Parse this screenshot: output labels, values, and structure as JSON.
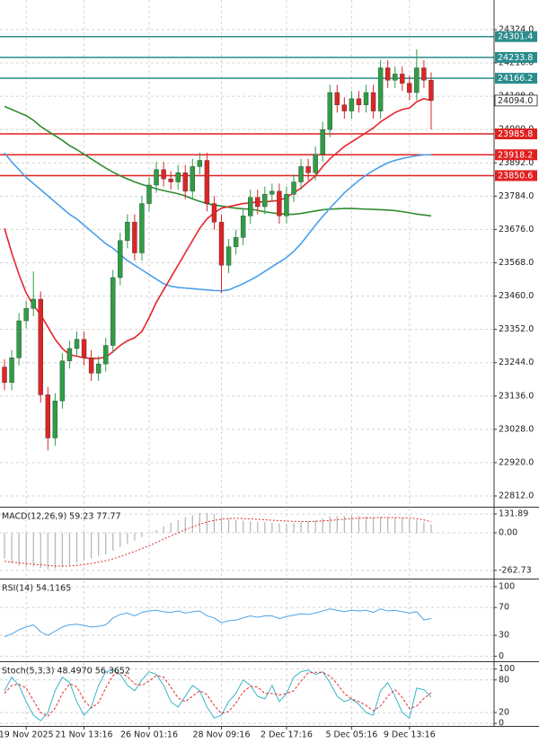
{
  "chart_data": [
    {
      "type": "candlestick",
      "grid": true,
      "up_color": "#2e9e45",
      "down_color": "#e02424",
      "categories": [
        null,
        null,
        null,
        "19 Nov 2025",
        null,
        null,
        null,
        null,
        null,
        null,
        null,
        "21 Nov 13:16",
        null,
        null,
        null,
        null,
        null,
        null,
        null,
        null,
        "26 Nov 01:16",
        null,
        null,
        null,
        null,
        null,
        null,
        null,
        null,
        null,
        "28 Nov 09:16",
        null,
        null,
        null,
        null,
        null,
        null,
        null,
        null,
        "2 Dec 17:16",
        null,
        null,
        null,
        null,
        null,
        null,
        null,
        null,
        "5 Dec 05:16",
        null,
        null,
        null,
        null,
        null,
        null,
        null,
        "9 Dec 13:16",
        null,
        null,
        null
      ],
      "open": [
        23230,
        23180,
        23260,
        23380,
        23420,
        23450,
        23140,
        23000,
        23120,
        23250,
        23290,
        23320,
        23260,
        23210,
        23240,
        23300,
        23520,
        23640,
        23700,
        23600,
        23760,
        23820,
        23870,
        23840,
        23830,
        23860,
        23800,
        23880,
        23900,
        23760,
        23700,
        23560,
        23620,
        23650,
        23720,
        23780,
        23750,
        23790,
        23800,
        23720,
        23790,
        23830,
        23880,
        23860,
        23920,
        24000,
        24120,
        24080,
        24060,
        24100,
        24080,
        24120,
        24060,
        24200,
        24160,
        24180,
        24150,
        24120,
        24200,
        24160
      ],
      "high": [
        23255,
        23285,
        23405,
        23445,
        23540,
        23475,
        23165,
        23145,
        23275,
        23315,
        23345,
        23345,
        23285,
        23265,
        23325,
        23545,
        23665,
        23725,
        23725,
        23785,
        23845,
        23895,
        23895,
        23865,
        23885,
        23885,
        23905,
        23925,
        23925,
        23785,
        23725,
        23645,
        23675,
        23745,
        23805,
        23805,
        23815,
        23825,
        23825,
        23815,
        23855,
        23905,
        23905,
        23945,
        24025,
        24145,
        24145,
        24105,
        24125,
        24125,
        24145,
        24145,
        24225,
        24225,
        24205,
        24205,
        24175,
        24260,
        24225,
        24185
      ],
      "low": [
        23155,
        23155,
        23235,
        23355,
        23395,
        23115,
        22960,
        22975,
        23095,
        23225,
        23265,
        23235,
        23185,
        23185,
        23215,
        23275,
        23495,
        23615,
        23575,
        23575,
        23735,
        23795,
        23815,
        23805,
        23805,
        23775,
        23775,
        23855,
        23735,
        23675,
        23470,
        23535,
        23595,
        23625,
        23695,
        23725,
        23725,
        23765,
        23695,
        23695,
        23765,
        23805,
        23835,
        23835,
        23895,
        23975,
        24055,
        24035,
        24035,
        24055,
        24055,
        24035,
        24035,
        24135,
        24135,
        24125,
        24095,
        24095,
        24135,
        24000
      ],
      "close": [
        23180,
        23260,
        23380,
        23420,
        23450,
        23140,
        23000,
        23120,
        23250,
        23290,
        23320,
        23260,
        23210,
        23240,
        23300,
        23520,
        23640,
        23700,
        23600,
        23760,
        23820,
        23870,
        23840,
        23830,
        23860,
        23800,
        23880,
        23900,
        23760,
        23700,
        23560,
        23620,
        23650,
        23720,
        23780,
        23750,
        23790,
        23800,
        23720,
        23790,
        23830,
        23880,
        23860,
        23920,
        24000,
        24120,
        24080,
        24060,
        24100,
        24080,
        24120,
        24060,
        24200,
        24160,
        24180,
        24150,
        24120,
        24200,
        24160,
        24094
      ],
      "lines": [
        {
          "color": "#2e8b2e",
          "values": [
            24075,
            24065,
            24055,
            24045,
            24030,
            24010,
            23995,
            23980,
            23965,
            23948,
            23935,
            23920,
            23905,
            23890,
            23875,
            23862,
            23850,
            23840,
            23830,
            23822,
            23815,
            23808,
            23802,
            23797,
            23792,
            23785,
            23775,
            23767,
            23760,
            23755,
            23752,
            23748,
            23745,
            23743,
            23742,
            23738,
            23733,
            23730,
            23727,
            23725,
            23725,
            23728,
            23732,
            23736,
            23740,
            23742,
            23743,
            23744,
            23744,
            23743,
            23742,
            23741,
            23740,
            23739,
            23737,
            23734,
            23730,
            23726,
            23723,
            23720
          ]
        },
        {
          "color": "#4a9fe8",
          "values": [
            23924,
            23895,
            23870,
            23845,
            23825,
            23805,
            23785,
            23765,
            23745,
            23725,
            23710,
            23690,
            23670,
            23650,
            23630,
            23615,
            23595,
            23575,
            23560,
            23545,
            23530,
            23515,
            23500,
            23492,
            23488,
            23486,
            23484,
            23482,
            23480,
            23478,
            23477,
            23480,
            23490,
            23500,
            23512,
            23525,
            23540,
            23555,
            23570,
            23585,
            23605,
            23630,
            23660,
            23690,
            23718,
            23745,
            23770,
            23795,
            23815,
            23835,
            23852,
            23867,
            23880,
            23892,
            23900,
            23906,
            23911,
            23915,
            23918,
            23918
          ]
        },
        {
          "color": "#e8242a",
          "values": [
            23680,
            23600,
            23530,
            23470,
            23430,
            23400,
            23360,
            23320,
            23290,
            23270,
            23265,
            23260,
            23258,
            23258,
            23262,
            23280,
            23300,
            23315,
            23325,
            23345,
            23390,
            23440,
            23480,
            23520,
            23560,
            23600,
            23640,
            23680,
            23710,
            23730,
            23745,
            23750,
            23755,
            23760,
            23762,
            23765,
            23765,
            23768,
            23770,
            23780,
            23795,
            23810,
            23830,
            23850,
            23880,
            23905,
            23925,
            23945,
            23960,
            23975,
            23990,
            24005,
            24025,
            24040,
            24055,
            24065,
            24070,
            24090,
            24100,
            24094
          ]
        }
      ],
      "levels": [
        {
          "value": 24301.4,
          "color": "#2a8c8c"
        },
        {
          "value": 24233.8,
          "color": "#2a8c8c"
        },
        {
          "value": 24166.2,
          "color": "#2a8c8c"
        },
        {
          "value": 23985.8,
          "color": "#e02020"
        },
        {
          "value": 23918.2,
          "color": "#e02020"
        },
        {
          "value": 23850.6,
          "color": "#e02020"
        }
      ],
      "last": {
        "value": 24094,
        "label": "24094.0"
      },
      "ylim": [
        22780,
        24420
      ],
      "yticks": [
        {
          "value": 22812,
          "label": "22812.0"
        },
        {
          "value": 22920,
          "label": "22920.0"
        },
        {
          "value": 23028,
          "label": "23028.0"
        },
        {
          "value": 23136,
          "label": "23136.0"
        },
        {
          "value": 23244,
          "label": "23244.0"
        },
        {
          "value": 23352,
          "label": "23352.0"
        },
        {
          "value": 23460,
          "label": "23460.0"
        },
        {
          "value": 23568,
          "label": "23568.0"
        },
        {
          "value": 23676,
          "label": "23676.0"
        },
        {
          "value": 23784,
          "label": "23784.0"
        },
        {
          "value": 23892,
          "label": "23892.0"
        },
        {
          "value": 24000,
          "label": "24000.0"
        },
        {
          "value": 24108,
          "label": "24108.0"
        },
        {
          "value": 24216,
          "label": "24216.0"
        },
        {
          "value": 24324,
          "label": "24324.0"
        }
      ]
    },
    {
      "type": "macd",
      "grid": true,
      "title": "MACD(12,26,9) 59.23 77.77",
      "hist_color": "#b4b4b4",
      "signal_color": "#e03030",
      "histogram": [
        -180,
        -210,
        -230,
        -240,
        -235,
        -245,
        -255,
        -250,
        -240,
        -225,
        -210,
        -195,
        -180,
        -165,
        -150,
        -125,
        -100,
        -75,
        -55,
        -30,
        -5,
        20,
        45,
        70,
        90,
        110,
        125,
        140,
        140,
        130,
        110,
        100,
        90,
        85,
        80,
        78,
        75,
        72,
        65,
        62,
        68,
        75,
        80,
        88,
        100,
        115,
        118,
        118,
        120,
        118,
        115,
        110,
        112,
        110,
        108,
        105,
        98,
        90,
        75,
        59.23
      ],
      "signal": [
        -200,
        -205,
        -210,
        -215,
        -220,
        -224,
        -228,
        -232,
        -233,
        -232,
        -228,
        -222,
        -215,
        -205,
        -195,
        -182,
        -166,
        -148,
        -130,
        -110,
        -90,
        -68,
        -45,
        -22,
        0,
        22,
        42,
        60,
        75,
        87,
        95,
        100,
        102,
        100,
        97,
        94,
        91,
        88,
        85,
        82,
        80,
        79,
        79,
        80,
        83,
        87,
        91,
        95,
        99,
        102,
        104,
        105,
        106,
        106,
        106,
        105,
        103,
        99,
        90,
        77.77
      ],
      "ylim": [
        -314,
        170
      ],
      "yticks": [
        131.89,
        {
          "value": 0,
          "label": "0.00"
        },
        -262.73
      ]
    },
    {
      "type": "line",
      "grid": true,
      "title": "RSI(14) 54.1165",
      "series": [
        {
          "color": "#4aa3e8",
          "values": [
            28,
            32,
            38,
            42,
            45,
            35,
            30,
            36,
            42,
            45,
            46,
            44,
            42,
            43,
            45,
            55,
            60,
            62,
            58,
            63,
            65,
            66,
            64,
            63,
            65,
            62,
            64,
            65,
            58,
            55,
            48,
            51,
            52,
            55,
            58,
            56,
            58,
            58,
            54,
            57,
            59,
            61,
            60,
            62,
            65,
            68,
            66,
            64,
            66,
            65,
            66,
            63,
            68,
            65,
            66,
            64,
            62,
            64,
            52,
            54.1165
          ]
        }
      ],
      "ylim": [
        -6,
        109
      ],
      "yticks": [
        100,
        70,
        30,
        0
      ]
    },
    {
      "type": "line",
      "grid": true,
      "title": "Stoch(5,3,3) 48.4970 56.3652",
      "series": [
        {
          "color": "#3ab5c9",
          "values": [
            60,
            85,
            70,
            40,
            15,
            5,
            20,
            60,
            85,
            75,
            40,
            15,
            30,
            70,
            95,
            98,
            90,
            70,
            60,
            80,
            95,
            90,
            70,
            40,
            30,
            50,
            70,
            60,
            30,
            10,
            15,
            40,
            55,
            80,
            70,
            50,
            45,
            70,
            40,
            55,
            85,
            95,
            98,
            90,
            95,
            75,
            50,
            40,
            45,
            35,
            20,
            15,
            60,
            75,
            50,
            20,
            10,
            65,
            62,
            48.497
          ]
        },
        {
          "color": "#e03030",
          "dashed": true,
          "values": [
            55,
            70,
            72,
            65,
            42,
            20,
            13,
            28,
            55,
            73,
            67,
            43,
            28,
            38,
            65,
            88,
            94,
            86,
            73,
            70,
            78,
            88,
            85,
            67,
            47,
            40,
            50,
            60,
            53,
            33,
            18,
            22,
            37,
            58,
            68,
            67,
            55,
            55,
            52,
            55,
            60,
            78,
            93,
            94,
            94,
            87,
            73,
            55,
            45,
            40,
            33,
            23,
            32,
            50,
            62,
            48,
            27,
            32,
            46,
            56.3652
          ]
        }
      ],
      "ylim": [
        -3,
        111
      ],
      "yticks": [
        100,
        80,
        20,
        0
      ]
    }
  ]
}
